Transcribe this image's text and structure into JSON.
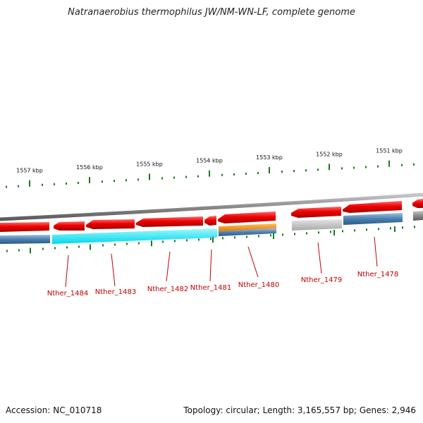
{
  "title": "Natranaerobius thermophilus JW/NM-WN-LF, complete genome",
  "footer": {
    "accession": "Accession: NC_010718",
    "summary": "Topology: circular; Length: 3,165,557 bp; Genes: 2,946"
  },
  "colors": {
    "backbone": "#8a8a8a",
    "gene_red": "#e60000",
    "tick_green": "#1a7a1a",
    "label_red": "#c00000",
    "cyan": "#00e5f2",
    "orange": "#f08c00",
    "steel_blue": "#4a7fae",
    "light_gray": "#bdbdbd"
  },
  "scale": {
    "labels": [
      "1557 kbp",
      "1556 kbp",
      "1555 kbp",
      "1554 kbp",
      "1553 kbp",
      "1552 kbp",
      "1551 kbp"
    ]
  },
  "genes": [
    {
      "label": "Nther_1484"
    },
    {
      "label": "Nther_1483"
    },
    {
      "label": "Nther_1482"
    },
    {
      "label": "Nther_1481"
    },
    {
      "label": "Nther_1480"
    },
    {
      "label": "Nther_1479"
    },
    {
      "label": "Nther_1478"
    }
  ]
}
